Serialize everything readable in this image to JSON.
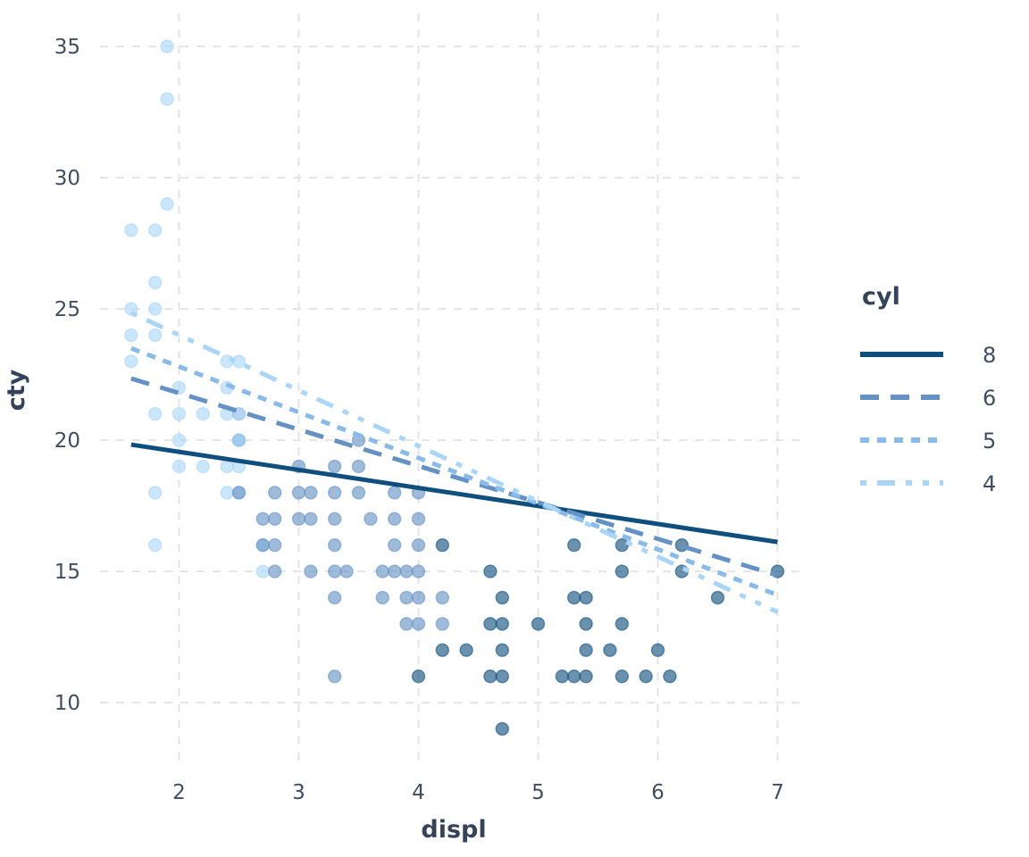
{
  "chart_data": {
    "type": "scatter",
    "title": "",
    "xlabel": "displ",
    "ylabel": "cty",
    "x_ticks": [
      2,
      3,
      4,
      5,
      6,
      7
    ],
    "y_ticks": [
      10,
      15,
      20,
      25,
      30,
      35
    ],
    "xlim": [
      1.34,
      7.22
    ],
    "ylim": [
      7.69,
      36.26
    ],
    "grid": "dashed major gridlines, light gray, no panel border",
    "grid_color": "#e4e6e9",
    "text_color": "#3f4e63",
    "legend": {
      "title": "cyl",
      "position": "right",
      "order": [
        "8",
        "6",
        "5",
        "4"
      ]
    },
    "series": [
      {
        "name": "4",
        "cyl": 4,
        "color": "#a9d6f8",
        "linetype": "dashdotdot",
        "points": [
          [
            1.6,
            28
          ],
          [
            1.6,
            25
          ],
          [
            1.6,
            24
          ],
          [
            1.6,
            23
          ],
          [
            1.8,
            28
          ],
          [
            1.8,
            26
          ],
          [
            1.8,
            25
          ],
          [
            1.8,
            24
          ],
          [
            1.8,
            21
          ],
          [
            1.8,
            18
          ],
          [
            1.8,
            16
          ],
          [
            1.9,
            35
          ],
          [
            1.9,
            33
          ],
          [
            1.9,
            29
          ],
          [
            2.0,
            22
          ],
          [
            2.0,
            21
          ],
          [
            2.0,
            20
          ],
          [
            2.0,
            19
          ],
          [
            2.2,
            21
          ],
          [
            2.2,
            19
          ],
          [
            2.4,
            23
          ],
          [
            2.4,
            22
          ],
          [
            2.4,
            21
          ],
          [
            2.4,
            19
          ],
          [
            2.4,
            18
          ],
          [
            2.5,
            23
          ],
          [
            2.5,
            20
          ],
          [
            2.5,
            19
          ],
          [
            2.5,
            18
          ],
          [
            2.7,
            16
          ],
          [
            2.7,
            15
          ]
        ],
        "trend": {
          "x": [
            1.6,
            7.0
          ],
          "y": [
            24.85,
            13.45
          ]
        }
      },
      {
        "name": "5",
        "cyl": 5,
        "color": "#88bbea",
        "linetype": "dashed-short",
        "points": [
          [
            2.5,
            21
          ],
          [
            2.5,
            20
          ]
        ],
        "trend": {
          "x": [
            1.6,
            7.0
          ],
          "y": [
            23.5,
            14.1
          ]
        }
      },
      {
        "name": "6",
        "cyl": 6,
        "color": "#6492c4",
        "linetype": "dashed-long",
        "points": [
          [
            2.5,
            18
          ],
          [
            2.7,
            17
          ],
          [
            2.7,
            16
          ],
          [
            2.8,
            18
          ],
          [
            2.8,
            17
          ],
          [
            2.8,
            16
          ],
          [
            2.8,
            15
          ],
          [
            3.0,
            19
          ],
          [
            3.0,
            18
          ],
          [
            3.0,
            17
          ],
          [
            3.1,
            18
          ],
          [
            3.1,
            17
          ],
          [
            3.1,
            15
          ],
          [
            3.3,
            19
          ],
          [
            3.3,
            18
          ],
          [
            3.3,
            17
          ],
          [
            3.3,
            16
          ],
          [
            3.3,
            15
          ],
          [
            3.3,
            14
          ],
          [
            3.3,
            11
          ],
          [
            3.4,
            15
          ],
          [
            3.5,
            20
          ],
          [
            3.5,
            19
          ],
          [
            3.5,
            18
          ],
          [
            3.6,
            17
          ],
          [
            3.7,
            15
          ],
          [
            3.7,
            14
          ],
          [
            3.8,
            18
          ],
          [
            3.8,
            17
          ],
          [
            3.8,
            16
          ],
          [
            3.8,
            15
          ],
          [
            3.9,
            15
          ],
          [
            3.9,
            14
          ],
          [
            3.9,
            13
          ],
          [
            4.0,
            18
          ],
          [
            4.0,
            17
          ],
          [
            4.0,
            16
          ],
          [
            4.0,
            15
          ],
          [
            4.0,
            14
          ],
          [
            4.0,
            13
          ],
          [
            4.2,
            14
          ],
          [
            4.2,
            13
          ]
        ],
        "trend": {
          "x": [
            1.6,
            7.0
          ],
          "y": [
            22.35,
            14.85
          ]
        }
      },
      {
        "name": "8",
        "cyl": 8,
        "color": "#0f4f7d",
        "linetype": "solid",
        "points": [
          [
            4.0,
            11
          ],
          [
            4.2,
            16
          ],
          [
            4.2,
            12
          ],
          [
            4.4,
            12
          ],
          [
            4.6,
            15
          ],
          [
            4.6,
            13
          ],
          [
            4.6,
            11
          ],
          [
            4.7,
            14
          ],
          [
            4.7,
            13
          ],
          [
            4.7,
            12
          ],
          [
            4.7,
            11
          ],
          [
            4.7,
            9
          ],
          [
            5.0,
            13
          ],
          [
            5.2,
            11
          ],
          [
            5.3,
            16
          ],
          [
            5.3,
            14
          ],
          [
            5.3,
            11
          ],
          [
            5.4,
            14
          ],
          [
            5.4,
            13
          ],
          [
            5.4,
            12
          ],
          [
            5.4,
            11
          ],
          [
            5.6,
            12
          ],
          [
            5.7,
            16
          ],
          [
            5.7,
            15
          ],
          [
            5.7,
            13
          ],
          [
            5.7,
            11
          ],
          [
            5.9,
            11
          ],
          [
            6.0,
            12
          ],
          [
            6.1,
            11
          ],
          [
            6.2,
            16
          ],
          [
            6.2,
            15
          ],
          [
            6.5,
            14
          ],
          [
            7.0,
            15
          ]
        ],
        "trend": {
          "x": [
            1.6,
            7.0
          ],
          "y": [
            19.83,
            16.12
          ]
        }
      }
    ]
  }
}
